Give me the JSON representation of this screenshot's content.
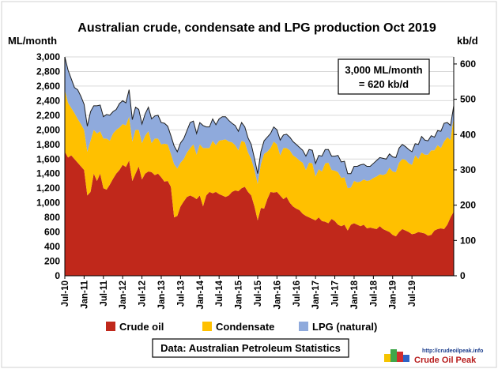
{
  "chart_data": {
    "type": "area",
    "stacked": true,
    "title": "Australian crude, condensate and LPG production Oct 2019",
    "ylabel": "ML/month",
    "y2label": "kb/d",
    "ylim": [
      0,
      3000
    ],
    "yticks": [
      "0",
      "200",
      "400",
      "600",
      "800",
      "1,000",
      "1,200",
      "1,400",
      "1,600",
      "1,800",
      "2,000",
      "2,200",
      "2,400",
      "2,600",
      "2,800",
      "3,000"
    ],
    "y2lim": [
      0,
      620
    ],
    "y2ticks": [
      "0",
      "100",
      "200",
      "300",
      "400",
      "500",
      "600"
    ],
    "xticks": [
      "Jul-10",
      "Jan-11",
      "Jul-11",
      "Jan-12",
      "Jul-12",
      "Jan-13",
      "Jul-13",
      "Jan-14",
      "Jul-14",
      "Jan-15",
      "Jul-15",
      "Jan-16",
      "Jul-16",
      "Jan-17",
      "Jul-17",
      "Jan-18",
      "Jul-18",
      "Jan-19",
      "Jul-19"
    ],
    "x_start": "Jul-10",
    "x_end": "Oct-19",
    "grid": true,
    "legend_position": "bottom",
    "series": [
      {
        "name": "Crude oil",
        "color": "#c0281b",
        "values": [
          1700,
          1620,
          1650,
          1600,
          1550,
          1500,
          1450,
          1100,
          1150,
          1400,
          1300,
          1400,
          1200,
          1180,
          1250,
          1330,
          1400,
          1450,
          1520,
          1490,
          1580,
          1300,
          1400,
          1500,
          1320,
          1400,
          1430,
          1420,
          1380,
          1400,
          1350,
          1290,
          1300,
          1220,
          800,
          820,
          950,
          1020,
          1080,
          1100,
          1080,
          1050,
          1100,
          950,
          1100,
          1150,
          1130,
          1150,
          1120,
          1100,
          1080,
          1100,
          1150,
          1170,
          1160,
          1200,
          1220,
          1150,
          1100,
          950,
          760,
          930,
          920,
          1050,
          1150,
          1140,
          1150,
          1100,
          1050,
          1080,
          1000,
          950,
          920,
          900,
          850,
          820,
          800,
          780,
          760,
          800,
          750,
          740,
          720,
          780,
          750,
          700,
          680,
          700,
          620,
          700,
          720,
          700,
          680,
          700,
          650,
          660,
          650,
          640,
          680,
          640,
          620,
          600,
          560,
          540,
          600,
          640,
          620,
          600,
          570,
          580,
          600,
          590,
          580,
          550,
          560,
          620,
          640,
          650,
          640,
          700,
          800,
          880
        ]
      },
      {
        "name": "Condensate",
        "color": "#ffc000",
        "values": [
          850,
          750,
          650,
          630,
          600,
          580,
          550,
          600,
          700,
          600,
          650,
          580,
          680,
          700,
          600,
          620,
          600,
          580,
          560,
          570,
          600,
          540,
          600,
          500,
          500,
          520,
          550,
          400,
          500,
          480,
          450,
          520,
          500,
          450,
          730,
          650,
          600,
          580,
          610,
          650,
          720,
          610,
          700,
          800,
          650,
          600,
          720,
          640,
          730,
          760,
          790,
          740,
          680,
          620,
          560,
          650,
          610,
          540,
          500,
          500,
          500,
          600,
          750,
          650,
          600,
          700,
          650,
          550,
          700,
          670,
          720,
          700,
          700,
          680,
          700,
          630,
          750,
          760,
          600,
          660,
          680,
          800,
          830,
          670,
          690,
          720,
          660,
          650,
          580,
          510,
          580,
          580,
          610,
          620,
          650,
          650,
          690,
          720,
          710,
          740,
          780,
          880,
          870,
          880,
          950,
          960,
          970,
          940,
          950,
          1070,
          1000,
          1100,
          1080,
          1110,
          1160,
          1100,
          1150,
          1100,
          1200,
          1200,
          1060,
          1300
        ]
      },
      {
        "name": "LPG (natural)",
        "color": "#8faadc",
        "values": [
          450,
          450,
          400,
          350,
          400,
          380,
          350,
          350,
          400,
          330,
          380,
          360,
          300,
          330,
          350,
          300,
          280,
          330,
          320,
          310,
          370,
          300,
          310,
          280,
          260,
          300,
          330,
          330,
          310,
          320,
          300,
          280,
          250,
          250,
          250,
          230,
          270,
          280,
          300,
          350,
          320,
          290,
          300,
          310,
          290,
          290,
          300,
          280,
          300,
          320,
          310,
          290,
          260,
          270,
          260,
          250,
          210,
          200,
          200,
          160,
          140,
          170,
          180,
          200,
          200,
          200,
          200,
          210,
          180,
          190,
          180,
          190,
          180,
          180,
          170,
          190,
          180,
          180,
          180,
          190,
          210,
          190,
          180,
          190,
          200,
          230,
          220,
          220,
          200,
          190,
          200,
          220,
          230,
          210,
          200,
          190,
          200,
          220,
          230,
          230,
          200,
          190,
          200,
          200,
          200,
          200,
          180,
          190,
          180,
          160,
          200,
          220,
          200,
          190,
          200,
          180,
          200,
          230,
          250,
          200,
          200,
          150
        ]
      }
    ],
    "annotation": "3,000 ML/month\n= 620 kb/d",
    "source": "Data: Australian Petroleum Statistics"
  },
  "annotation_lines": [
    "3,000 ML/month",
    "= 620 kb/d"
  ],
  "logo": {
    "url": "http://crudeoilpeak.info",
    "name": "Crude Oil Peak"
  }
}
